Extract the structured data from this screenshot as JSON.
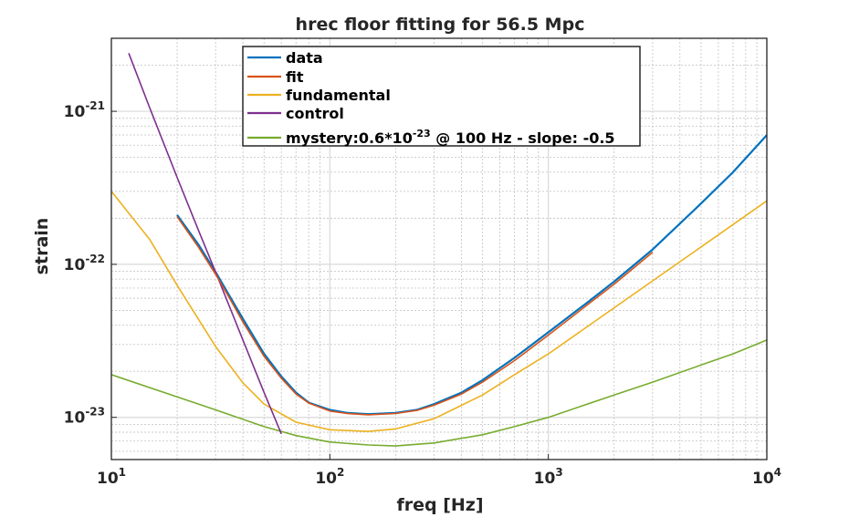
{
  "chart_data": {
    "type": "line",
    "title": "hrec floor fitting for 56.5 Mpc",
    "xlabel": "freq [Hz]",
    "ylabel": "strain",
    "xscale": "log",
    "yscale": "log",
    "xlim": [
      10,
      10000
    ],
    "ylim": [
      5.3e-24,
      3e-21
    ],
    "grid": true,
    "minor_grid": true,
    "legend_position": "top-center",
    "xticks": [
      {
        "base": "10",
        "exp": "1",
        "value": 10
      },
      {
        "base": "10",
        "exp": "2",
        "value": 100
      },
      {
        "base": "10",
        "exp": "3",
        "value": 1000
      },
      {
        "base": "10",
        "exp": "4",
        "value": 10000
      }
    ],
    "yticks": [
      {
        "base": "10",
        "exp": "-23",
        "value": 1e-23
      },
      {
        "base": "10",
        "exp": "-22",
        "value": 1e-22
      },
      {
        "base": "10",
        "exp": "-21",
        "value": 1e-21
      }
    ],
    "series": [
      {
        "name": "data",
        "color": "#0072BD",
        "x": [
          20,
          25,
          30,
          35,
          40,
          50,
          60,
          70,
          80,
          100,
          120,
          150,
          200,
          250,
          300,
          400,
          500,
          700,
          1000,
          1500,
          2000,
          3000,
          5000,
          7000,
          10000
        ],
        "y": [
          2.1e-22,
          1.35e-22,
          8.9e-23,
          6.1e-23,
          4.4e-23,
          2.6e-23,
          1.85e-23,
          1.45e-23,
          1.25e-23,
          1.12e-23,
          1.07e-23,
          1.05e-23,
          1.07e-23,
          1.12e-23,
          1.22e-23,
          1.45e-23,
          1.75e-23,
          2.45e-23,
          3.6e-23,
          5.6e-23,
          7.7e-23,
          1.25e-22,
          2.5e-22,
          4e-22,
          7e-22
        ]
      },
      {
        "name": "fit",
        "color": "#D95319",
        "x": [
          20,
          25,
          30,
          35,
          40,
          50,
          60,
          70,
          80,
          100,
          120,
          150,
          200,
          250,
          300,
          400,
          500,
          700,
          1000,
          1500,
          2000,
          3000
        ],
        "y": [
          2.05e-22,
          1.3e-22,
          8.6e-23,
          5.9e-23,
          4.2e-23,
          2.5e-23,
          1.8e-23,
          1.42e-23,
          1.24e-23,
          1.1e-23,
          1.06e-23,
          1.04e-23,
          1.06e-23,
          1.11e-23,
          1.2e-23,
          1.42e-23,
          1.7e-23,
          2.35e-23,
          3.45e-23,
          5.4e-23,
          7.4e-23,
          1.2e-22
        ]
      },
      {
        "name": "fundamental",
        "color": "#EDB120",
        "x": [
          10,
          15,
          20,
          30,
          40,
          50,
          70,
          100,
          150,
          200,
          300,
          500,
          700,
          1000,
          2000,
          3000,
          5000,
          7000,
          10000
        ],
        "y": [
          3e-22,
          1.45e-22,
          7.3e-23,
          2.9e-23,
          1.68e-23,
          1.22e-23,
          9.3e-24,
          8.3e-24,
          8.1e-24,
          8.4e-24,
          9.8e-24,
          1.4e-23,
          1.9e-23,
          2.6e-23,
          5.2e-23,
          7.8e-23,
          1.3e-22,
          1.82e-22,
          2.6e-22
        ]
      },
      {
        "name": "control",
        "color": "#7E2F8E",
        "x": [
          12,
          15,
          20,
          25,
          30,
          40,
          50,
          60
        ],
        "y": [
          2.4e-21,
          1.05e-21,
          3.7e-22,
          1.68e-22,
          8.9e-23,
          3.2e-23,
          1.45e-23,
          7.8e-24
        ]
      },
      {
        "name": "mystery:0.6*10-23 @ 100 Hz - slope: -0.5",
        "color": "#77AC30",
        "x": [
          10,
          20,
          30,
          50,
          70,
          100,
          150,
          200,
          300,
          500,
          700,
          1000,
          2000,
          3000,
          5000,
          7000,
          10000
        ],
        "y": [
          1.9e-23,
          1.36e-23,
          1.12e-23,
          8.7e-24,
          7.6e-24,
          6.9e-24,
          6.6e-24,
          6.5e-24,
          6.8e-24,
          7.7e-24,
          8.7e-24,
          1e-23,
          1.4e-23,
          1.7e-23,
          2.2e-23,
          2.6e-23,
          3.2e-23
        ]
      }
    ],
    "legend": [
      {
        "label": "data",
        "color": "#0072BD"
      },
      {
        "label": "fit",
        "color": "#D95319"
      },
      {
        "label": "fundamental",
        "color": "#EDB120"
      },
      {
        "label": "control",
        "color": "#7E2F8E"
      },
      {
        "label_pre": "mystery:0.6*10",
        "label_sup": "-23",
        "label_post": " @ 100 Hz - slope: -0.5",
        "color": "#77AC30"
      }
    ]
  }
}
